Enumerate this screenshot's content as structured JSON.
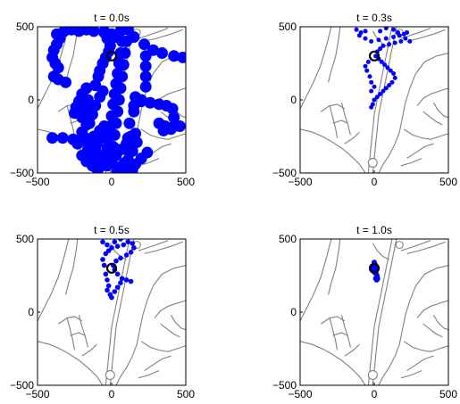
{
  "chart_data": [
    {
      "type": "scatter",
      "title": "t = 0.0s",
      "xlim": [
        -500,
        500
      ],
      "ylim": [
        -500,
        500
      ],
      "xticks": [
        "−500",
        "0",
        "500"
      ],
      "yticks": [
        "−500",
        "0",
        "500"
      ],
      "marker": {
        "x": 0,
        "y": 300
      },
      "series": [
        {
          "color": "#0000ff",
          "points": [
            [
              -370,
              450
            ],
            [
              -320,
              470
            ],
            [
              -270,
              480
            ],
            [
              -220,
              470
            ],
            [
              -170,
              480
            ],
            [
              -120,
              470
            ],
            [
              -50,
              460
            ],
            [
              0,
              450
            ],
            [
              30,
              430
            ],
            [
              -350,
              420
            ],
            [
              -370,
              380
            ],
            [
              -390,
              340
            ],
            [
              -400,
              290
            ],
            [
              -380,
              250
            ],
            [
              -360,
              220
            ],
            [
              -390,
              160
            ],
            [
              -360,
              140
            ],
            [
              -310,
              120
            ],
            [
              -50,
              470
            ],
            [
              -30,
              420
            ],
            [
              -10,
              370
            ],
            [
              -20,
              330
            ],
            [
              -40,
              290
            ],
            [
              -60,
              250
            ],
            [
              -80,
              200
            ],
            [
              -90,
              160
            ],
            [
              -110,
              100
            ],
            [
              -170,
              80
            ],
            [
              -200,
              40
            ],
            [
              -220,
              -10
            ],
            [
              -240,
              -50
            ],
            [
              -250,
              -90
            ],
            [
              -180,
              -60
            ],
            [
              -150,
              -120
            ],
            [
              -170,
              -170
            ],
            [
              -200,
              -220
            ],
            [
              -230,
              -300
            ],
            [
              -200,
              -380
            ],
            [
              -170,
              -420
            ],
            [
              -130,
              -450
            ],
            [
              -80,
              -460
            ],
            [
              -30,
              -450
            ],
            [
              0,
              -420
            ],
            [
              30,
              -380
            ],
            [
              60,
              -340
            ],
            [
              100,
              -300
            ],
            [
              130,
              -250
            ],
            [
              160,
              -230
            ],
            [
              170,
              -290
            ],
            [
              140,
              -350
            ],
            [
              110,
              -410
            ],
            [
              70,
              -450
            ],
            [
              40,
              -480
            ],
            [
              -80,
              -380
            ],
            [
              -110,
              -340
            ],
            [
              -150,
              -300
            ],
            [
              -180,
              -260
            ],
            [
              -120,
              -250
            ],
            [
              -80,
              -210
            ],
            [
              -50,
              -180
            ],
            [
              -150,
              -160
            ],
            [
              -130,
              -100
            ],
            [
              -110,
              -40
            ],
            [
              -80,
              20
            ],
            [
              -60,
              60
            ],
            [
              -400,
              -260
            ],
            [
              -330,
              -260
            ],
            [
              -260,
              -270
            ],
            [
              -200,
              -280
            ],
            [
              -150,
              -280
            ],
            [
              60,
              470
            ],
            [
              70,
              400
            ],
            [
              60,
              320
            ],
            [
              50,
              250
            ],
            [
              40,
              180
            ],
            [
              30,
              110
            ],
            [
              20,
              40
            ],
            [
              10,
              -30
            ],
            [
              0,
              -110
            ],
            [
              -10,
              -180
            ],
            [
              -20,
              -250
            ],
            [
              -30,
              -330
            ],
            [
              -40,
              -400
            ],
            [
              110,
              480
            ],
            [
              100,
              400
            ],
            [
              90,
              320
            ],
            [
              80,
              240
            ],
            [
              70,
              160
            ],
            [
              60,
              80
            ],
            [
              50,
              0
            ],
            [
              40,
              -80
            ],
            [
              30,
              -160
            ],
            [
              20,
              -240
            ],
            [
              10,
              -320
            ],
            [
              0,
              -400
            ],
            [
              150,
              430
            ],
            [
              220,
              380
            ],
            [
              280,
              340
            ],
            [
              340,
              320
            ],
            [
              420,
              300
            ],
            [
              480,
              290
            ],
            [
              230,
              300
            ],
            [
              230,
              230
            ],
            [
              230,
              160
            ],
            [
              230,
              90
            ],
            [
              200,
              0
            ],
            [
              150,
              -80
            ],
            [
              120,
              -160
            ],
            [
              110,
              -260
            ],
            [
              100,
              -340
            ],
            [
              90,
              -430
            ],
            [
              100,
              -470
            ],
            [
              140,
              -480
            ],
            [
              160,
              -440
            ],
            [
              200,
              -400
            ],
            [
              240,
              -360
            ],
            [
              150,
              -40
            ],
            [
              160,
              20
            ],
            [
              200,
              -10
            ],
            [
              260,
              -20
            ],
            [
              320,
              -30
            ],
            [
              370,
              -40
            ],
            [
              410,
              -60
            ],
            [
              420,
              -120
            ],
            [
              420,
              -180
            ],
            [
              460,
              -180
            ],
            [
              360,
              -180
            ],
            [
              320,
              -160
            ],
            [
              350,
              -210
            ],
            [
              400,
              -200
            ],
            [
              -90,
              -420
            ],
            [
              -110,
              -460
            ],
            [
              -50,
              -380
            ],
            [
              -10,
              -320
            ],
            [
              -150,
              -400
            ],
            [
              -160,
              -340
            ],
            [
              -100,
              -300
            ],
            [
              -60,
              -260
            ],
            [
              -200,
              -120
            ],
            [
              -160,
              0
            ]
          ],
          "size": 6.5
        }
      ]
    },
    {
      "type": "scatter",
      "title": "t = 0.3s",
      "xlim": [
        -500,
        500
      ],
      "ylim": [
        -500,
        500
      ],
      "xticks": [
        "−500",
        "0",
        "500"
      ],
      "yticks": [
        "−500",
        "0",
        "500"
      ],
      "marker": {
        "x": 0,
        "y": 300
      },
      "series": [
        {
          "color": "#0000ff",
          "points": [
            [
              -120,
              480
            ],
            [
              -100,
              440
            ],
            [
              -60,
              420
            ],
            [
              -20,
              400
            ],
            [
              30,
              410
            ],
            [
              80,
              420
            ],
            [
              130,
              430
            ],
            [
              170,
              440
            ],
            [
              200,
              450
            ],
            [
              210,
              420
            ],
            [
              240,
              400
            ],
            [
              180,
              400
            ],
            [
              140,
              390
            ],
            [
              100,
              380
            ],
            [
              60,
              370
            ],
            [
              40,
              350
            ],
            [
              20,
              330
            ],
            [
              10,
              300
            ],
            [
              30,
              280
            ],
            [
              50,
              260
            ],
            [
              70,
              240
            ],
            [
              90,
              220
            ],
            [
              110,
              200
            ],
            [
              130,
              180
            ],
            [
              140,
              150
            ],
            [
              120,
              120
            ],
            [
              100,
              100
            ],
            [
              80,
              80
            ],
            [
              60,
              60
            ],
            [
              40,
              40
            ],
            [
              20,
              20
            ],
            [
              0,
              0
            ],
            [
              -10,
              -30
            ],
            [
              -20,
              -50
            ],
            [
              -40,
              260
            ],
            [
              -60,
              230
            ],
            [
              -50,
              200
            ],
            [
              -30,
              160
            ],
            [
              -20,
              120
            ],
            [
              0,
              90
            ],
            [
              -20,
              60
            ],
            [
              40,
              470
            ],
            [
              80,
              490
            ],
            [
              130,
              480
            ],
            [
              160,
              460
            ],
            [
              220,
              460
            ],
            [
              -90,
              460
            ],
            [
              -60,
              470
            ]
          ],
          "size": 2.5
        }
      ]
    },
    {
      "type": "scatter",
      "title": "t = 0.5s",
      "xlim": [
        -500,
        500
      ],
      "ylim": [
        -500,
        500
      ],
      "xticks": [
        "−500",
        "0",
        "500"
      ],
      "yticks": [
        "−500",
        "0",
        "500"
      ],
      "marker": {
        "x": 0,
        "y": 300
      },
      "series": [
        {
          "color": "#0000ff",
          "points": [
            [
              -60,
              480
            ],
            [
              -30,
              460
            ],
            [
              0,
              440
            ],
            [
              40,
              450
            ],
            [
              80,
              460
            ],
            [
              110,
              480
            ],
            [
              140,
              470
            ],
            [
              150,
              440
            ],
            [
              130,
              410
            ],
            [
              100,
              390
            ],
            [
              60,
              370
            ],
            [
              30,
              350
            ],
            [
              10,
              320
            ],
            [
              20,
              290
            ],
            [
              40,
              260
            ],
            [
              70,
              230
            ],
            [
              100,
              220
            ],
            [
              130,
              210
            ],
            [
              -40,
              260
            ],
            [
              -30,
              220
            ],
            [
              -20,
              180
            ],
            [
              -30,
              150
            ],
            [
              -10,
              120
            ],
            [
              0,
              100
            ],
            [
              20,
              140
            ],
            [
              40,
              170
            ],
            [
              60,
              200
            ],
            [
              -50,
              320
            ],
            [
              -60,
              360
            ],
            [
              -40,
              400
            ],
            [
              -20,
              420
            ],
            [
              20,
              480
            ],
            [
              60,
              500
            ]
          ],
          "size": 2.8
        }
      ]
    },
    {
      "type": "scatter",
      "title": "t = 1.0s",
      "xlim": [
        -500,
        500
      ],
      "ylim": [
        -500,
        500
      ],
      "xticks": [
        "−500",
        "0",
        "500"
      ],
      "yticks": [
        "−500",
        "0",
        "500"
      ],
      "marker": {
        "x": 0,
        "y": 300
      },
      "series": [
        {
          "color": "#0000ff",
          "points": [
            [
              0,
              340
            ],
            [
              5,
              325
            ],
            [
              -5,
              315
            ],
            [
              8,
              305
            ],
            [
              -8,
              295
            ],
            [
              10,
              285
            ],
            [
              2,
              272
            ],
            [
              12,
              262
            ],
            [
              18,
              250
            ],
            [
              20,
              238
            ],
            [
              22,
              228
            ],
            [
              16,
              220
            ],
            [
              10,
              230
            ],
            [
              -4,
              282
            ],
            [
              6,
              312
            ],
            [
              -10,
              300
            ]
          ],
          "size": 3
        }
      ]
    }
  ],
  "colors": {
    "points": "#0000ff",
    "roads": "#808080",
    "marker": "#000000"
  }
}
